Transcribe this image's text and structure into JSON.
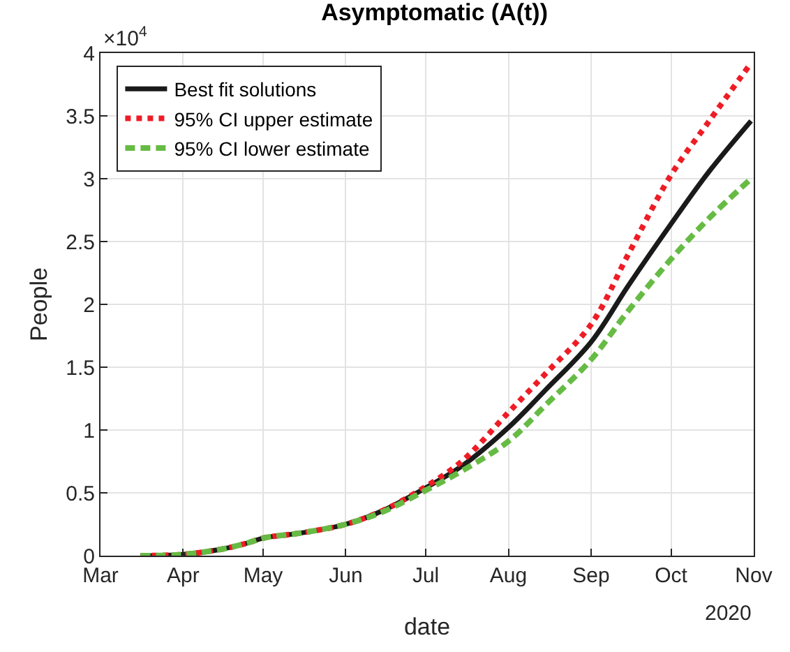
{
  "chart_data": {
    "type": "line",
    "title": "Asymptomatic (A(t))",
    "xlabel": "date",
    "ylabel": "People",
    "annotations": [
      "×10$^{4}$",
      "2020"
    ],
    "x": [
      "2020-03-16",
      "2020-04-01",
      "2020-04-15",
      "2020-04-25",
      "2020-05-01",
      "2020-05-15",
      "2020-06-01",
      "2020-06-15",
      "2020-07-01",
      "2020-07-15",
      "2020-08-01",
      "2020-08-15",
      "2020-09-01",
      "2020-09-15",
      "2020-10-01",
      "2020-10-15",
      "2020-10-31"
    ],
    "series": [
      {
        "name": "Best fit solutions",
        "color": "#1a1a1a",
        "line_style": "solid",
        "values": [
          0,
          0.01,
          0.05,
          0.1,
          0.14,
          0.18,
          0.25,
          0.36,
          0.54,
          0.72,
          1.02,
          1.32,
          1.7,
          2.15,
          2.64,
          3.05,
          3.46
        ]
      },
      {
        "name": "95% CI upper estimate",
        "color": "#ee1c25",
        "line_style": "dotted",
        "values": [
          0,
          0.01,
          0.05,
          0.1,
          0.14,
          0.18,
          0.25,
          0.36,
          0.55,
          0.76,
          1.14,
          1.45,
          1.84,
          2.4,
          3.03,
          3.45,
          3.92
        ]
      },
      {
        "name": "95% CI lower estimate",
        "color": "#66bb44",
        "line_style": "dashed",
        "values": [
          0,
          0.01,
          0.05,
          0.1,
          0.14,
          0.18,
          0.25,
          0.35,
          0.52,
          0.68,
          0.91,
          1.2,
          1.56,
          1.95,
          2.36,
          2.68,
          3.0
        ]
      }
    ],
    "xlim": [
      "2020-03-01",
      "2020-11-01"
    ],
    "xticks": [
      {
        "value": "2020-03-01",
        "label": "Mar"
      },
      {
        "value": "2020-04-01",
        "label": "Apr"
      },
      {
        "value": "2020-05-01",
        "label": "May"
      },
      {
        "value": "2020-06-01",
        "label": "Jun"
      },
      {
        "value": "2020-07-01",
        "label": "Jul"
      },
      {
        "value": "2020-08-01",
        "label": "Aug"
      },
      {
        "value": "2020-09-01",
        "label": "Sep"
      },
      {
        "value": "2020-10-01",
        "label": "Oct"
      },
      {
        "value": "2020-11-01",
        "label": "Nov"
      }
    ],
    "ylim": [
      0,
      4
    ],
    "yticks": [
      0,
      0.5,
      1,
      1.5,
      2,
      2.5,
      3,
      3.5,
      4
    ],
    "grid": true,
    "legend": "top left",
    "marker": "none"
  }
}
